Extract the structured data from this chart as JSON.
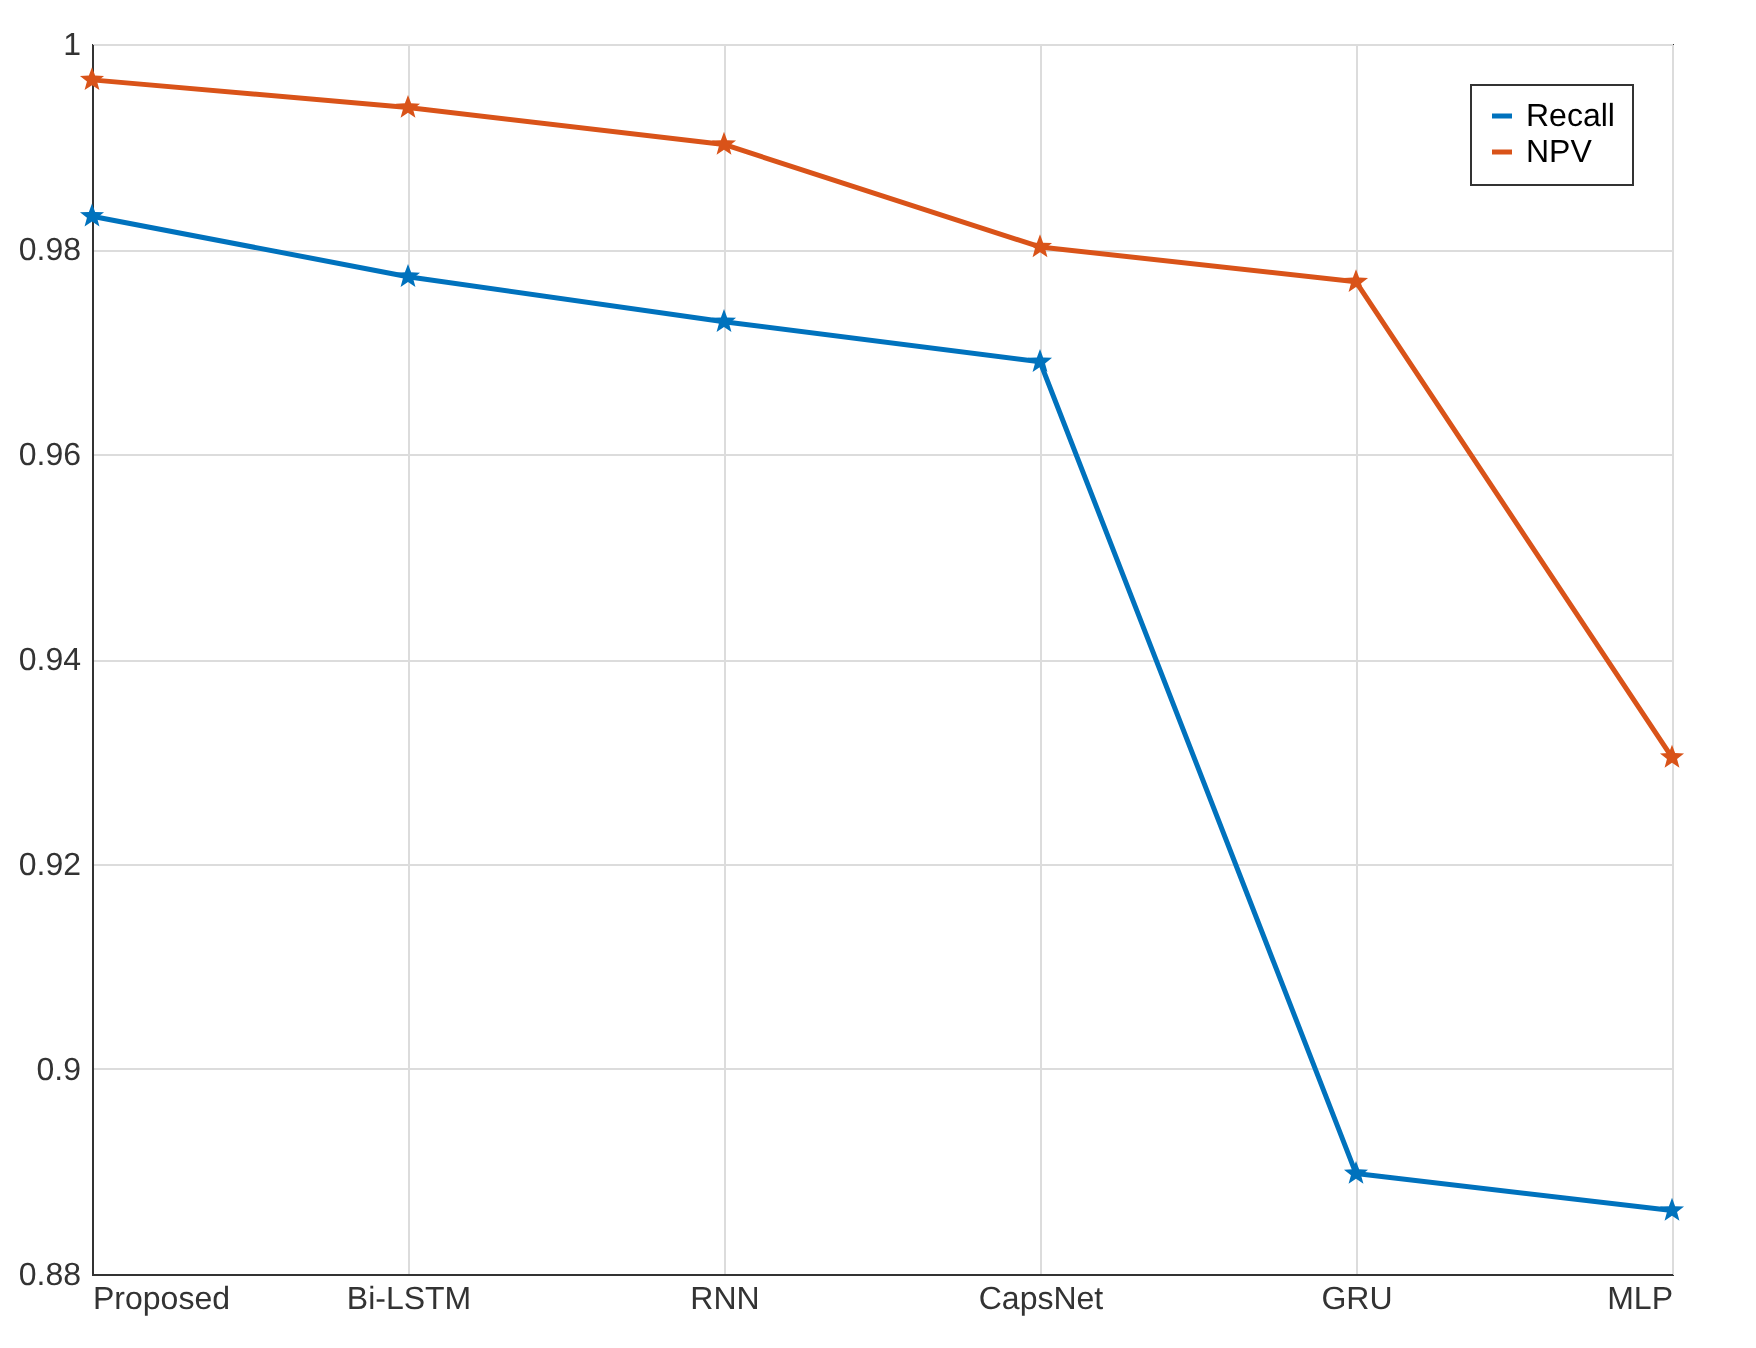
{
  "chart_data": {
    "type": "line",
    "categories": [
      "Proposed",
      "Bi-LSTM",
      "RNN",
      "CapsNet",
      "GRU",
      "MLP"
    ],
    "series": [
      {
        "name": "Recall",
        "color": "#0072bd",
        "values": [
          0.9832,
          0.9773,
          0.9729,
          0.969,
          0.8898,
          0.8862
        ]
      },
      {
        "name": "NPV",
        "color": "#d95319",
        "values": [
          0.9965,
          0.9938,
          0.9902,
          0.9802,
          0.9768,
          0.9304
        ]
      }
    ],
    "ylim": [
      0.88,
      1
    ],
    "yticks": [
      0.88,
      0.9,
      0.92,
      0.94,
      0.96,
      0.98,
      1
    ],
    "grid": true,
    "legend": "top right",
    "marker": "star",
    "line_style": "solid"
  }
}
